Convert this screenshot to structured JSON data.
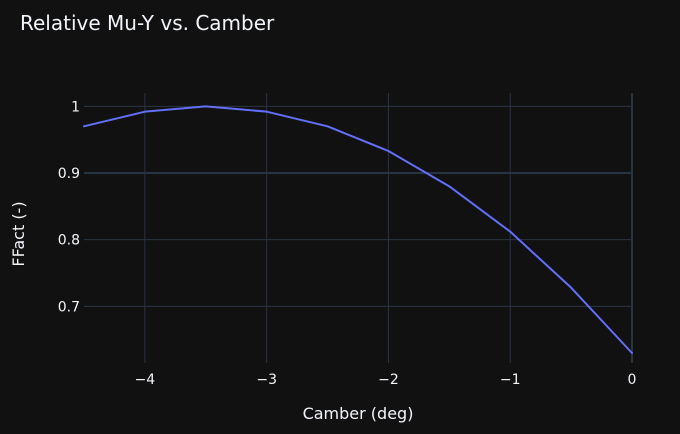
{
  "chart_data": {
    "type": "line",
    "title": "Relative Mu-Y vs. Camber",
    "xlabel": "Camber (deg)",
    "ylabel": "FFact (-)",
    "xlim": [
      -4.5,
      0
    ],
    "ylim": [
      0.615,
      1.02
    ],
    "xticks": [
      -4,
      -3,
      -2,
      -1,
      0
    ],
    "xtick_labels": [
      "−4",
      "−3",
      "−2",
      "−1",
      "0"
    ],
    "yticks": [
      0.7,
      0.8,
      0.9,
      1.0
    ],
    "ytick_labels": [
      "0.7",
      "0.8",
      "0.9",
      "1"
    ],
    "grid": true,
    "series": [
      {
        "color": "#636efa",
        "x": [
          -4.5,
          -4.0,
          -3.5,
          -3.0,
          -2.5,
          -2.0,
          -1.5,
          -1.0,
          -0.5,
          0.0
        ],
        "y": [
          0.97,
          0.992,
          1.0,
          0.992,
          0.97,
          0.933,
          0.88,
          0.812,
          0.728,
          0.63
        ]
      }
    ]
  },
  "colors": {
    "background": "#111111",
    "grid": "#283442",
    "text": "#f2f5fa",
    "line": "#636efa"
  }
}
